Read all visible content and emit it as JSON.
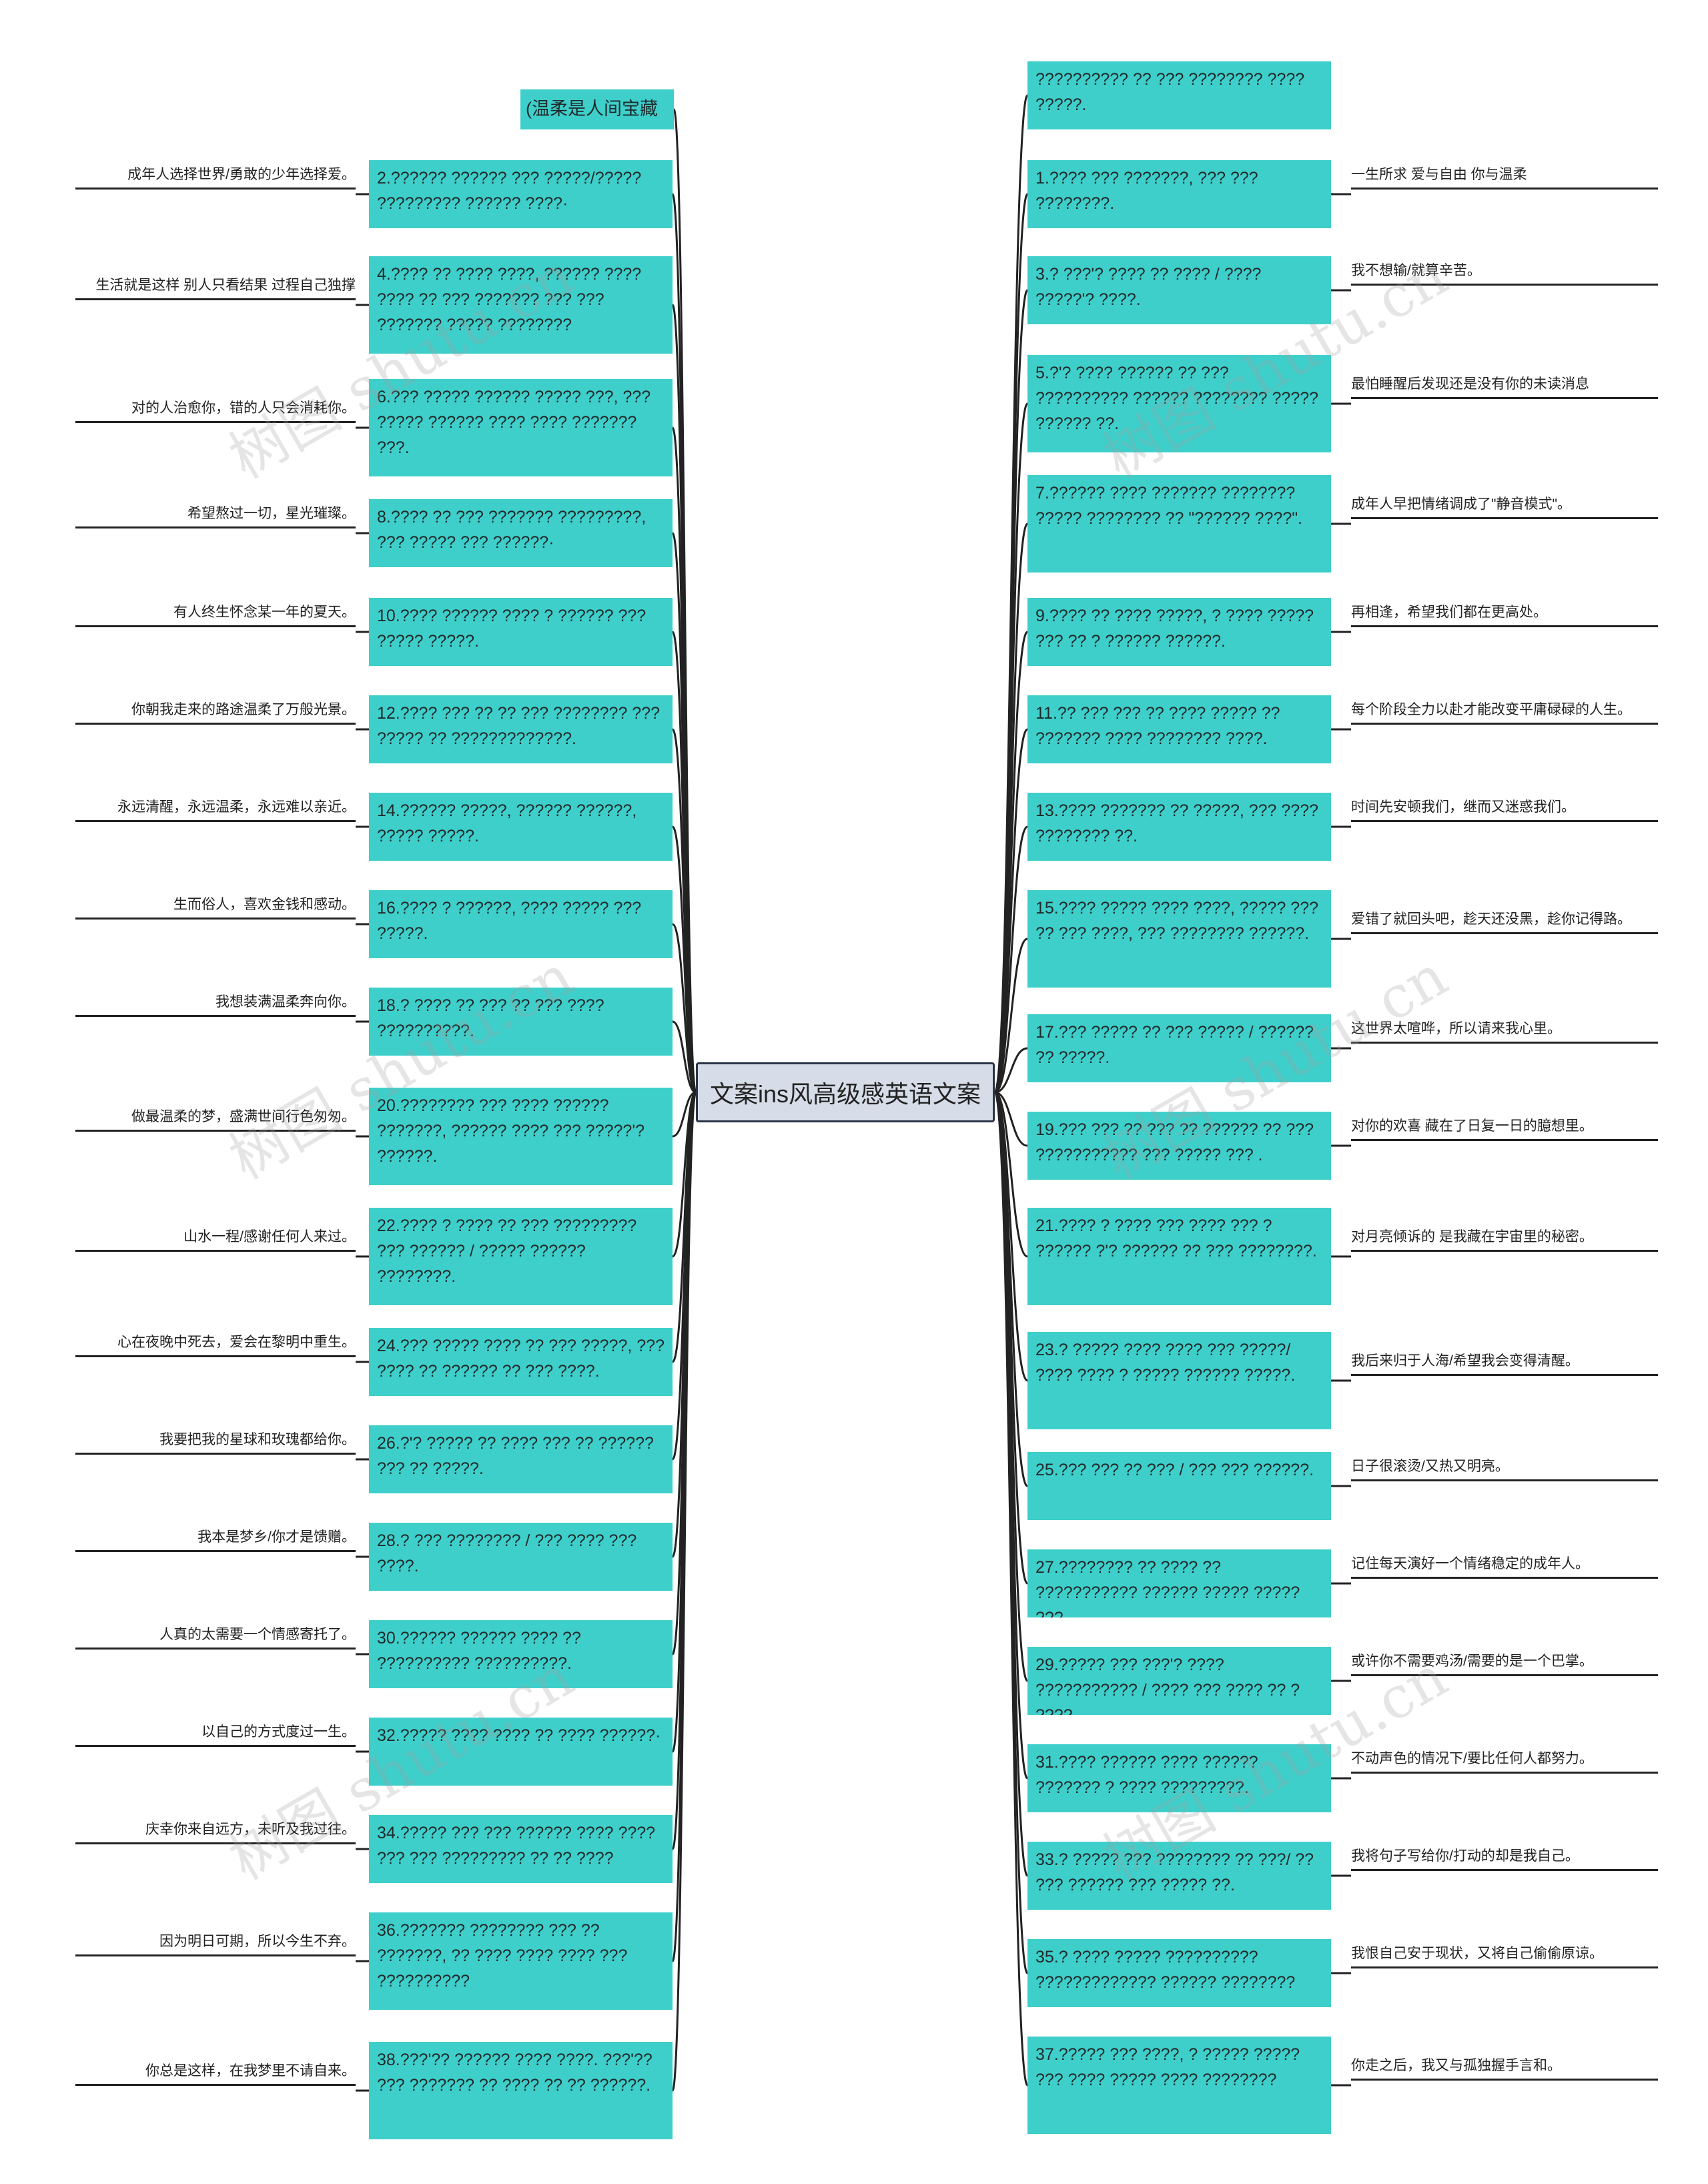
{
  "root": "文案ins风高级感英语文案",
  "left_top_label": "(温柔是人间宝藏",
  "left": [
    {
      "en": "2.?????? ?????? ??? ?????/????? ????????? ?????? ????·",
      "zh": "成年人选择世界/勇敢的少年选择爱。"
    },
    {
      "en": "4.???? ?? ???? ????, ?????? ???? ???? ?? ??? ??????? ??? ??? ??????? ?????   ????????",
      "zh": "生活就是这样 别人只看结果 过程自己独撑"
    },
    {
      "en": "6.??? ????? ?????? ????? ???, ??? ????? ?????? ???? ???? ??????? ???.",
      "zh": "对的人治愈你，错的人只会消耗你。"
    },
    {
      "en": "8.???? ?? ??? ??????? ?????????, ??? ????? ??? ??????·",
      "zh": "希望熬过一切，星光璀璨。"
    },
    {
      "en": "10.???? ?????? ???? ? ?????? ??? ????? ?????.",
      "zh": "有人终生怀念某一年的夏天。"
    },
    {
      "en": "12.???? ??? ?? ?? ??? ???????? ??? ????? ?? ?????????????.",
      "zh": "你朝我走来的路途温柔了万般光景。"
    },
    {
      "en": "14.?????? ?????, ?????? ??????, ????? ?????.",
      "zh": "永远清醒，永远温柔，永远难以亲近。"
    },
    {
      "en": "16.???? ? ??????, ???? ????? ??? ?????.",
      "zh": "生而俗人，喜欢金钱和感动。"
    },
    {
      "en": "18.? ???? ?? ??? ?? ??? ???? ??????????.",
      "zh": "我想装满温柔奔向你。"
    },
    {
      "en": "20.???????? ??? ???? ?????? ???????, ?????? ???? ??? ?????'? ??????.",
      "zh": "做最温柔的梦，盛满世间行色匆匆。"
    },
    {
      "en": "22.???? ? ???? ?? ??? ????????? ??? ?????? / ????? ?????? ????????.",
      "zh": "山水一程/感谢任何人来过。"
    },
    {
      "en": "24.??? ????? ???? ?? ??? ?????, ??? ???? ?? ?????? ?? ??? ????.",
      "zh": "心在夜晚中死去，爱会在黎明中重生。"
    },
    {
      "en": "26.?'? ????? ?? ???? ??? ?? ?????? ??? ?? ?????.",
      "zh": "我要把我的星球和玫瑰都给你。"
    },
    {
      "en": "28.? ??? ???????? / ??? ???? ??? ????.",
      "zh": "我本是梦乡/你才是馈赠。"
    },
    {
      "en": "30.?????? ?????? ???? ?? ?????????? ??????????.",
      "zh": "人真的太需要一个情感寄托了。"
    },
    {
      "en": "32.????? ???? ???? ?? ???? ??????·",
      "zh": "以自己的方式度过一生。"
    },
    {
      "en": "34.????? ??? ??? ?????? ???? ???? ??? ??? ????????? ?? ?? ????",
      "zh": "庆幸你来自远方，未听及我过往。"
    },
    {
      "en": "36.??????? ???????? ??? ?? ???????, ?? ???? ???? ???? ??? ??????????",
      "zh": "因为明日可期，所以今生不弃。"
    },
    {
      "en": "38.???'?? ?????? ???? ????. ???'?? ??? ??????? ?? ???? ?? ?? ??????.",
      "zh": "你总是这样，在我梦里不请自来。"
    }
  ],
  "right_top_label": "?????????? ?? ??? ???????? ???? ?????.",
  "right": [
    {
      "en": "1.???? ??? ???????, ??? ??? ????????.",
      "zh": "一生所求 爱与自由 你与温柔"
    },
    {
      "en": "3.? ???'? ???? ?? ???? / ???? ?????'? ????.",
      "zh": "我不想输/就算辛苦。"
    },
    {
      "en": "5.?'? ???? ?????? ?? ??? ?????????? ?????? ???????? ????? ?????? ??.",
      "zh": "最怕睡醒后发现还是没有你的未读消息"
    },
    {
      "en": "7.?????? ???? ??????? ???????? ????? ???????? ?? \"?????? ????\".",
      "zh": "成年人早把情绪调成了\"静音模式\"。"
    },
    {
      "en": "9.???? ?? ???? ?????, ? ???? ????? ??? ?? ? ?????? ??????.",
      "zh": "再相逢，希望我们都在更高处。"
    },
    {
      "en": "11.?? ??? ??? ?? ???? ????? ?? ??????? ???? ???????? ????.",
      "zh": "每个阶段全力以赴才能改变平庸碌碌的人生。"
    },
    {
      "en": "13.???? ??????? ?? ?????, ??? ???? ???????? ??.",
      "zh": "时间先安顿我们，继而又迷惑我们。"
    },
    {
      "en": "15.???? ????? ???? ????, ????? ??? ?? ??? ????, ??? ???????? ??????.",
      "zh": "爱错了就回头吧，趁天还没黑，趁你记得路。"
    },
    {
      "en": "17.??? ????? ?? ??? ????? / ?????? ?? ?????.",
      "zh": "这世界太喧哗，所以请来我心里。"
    },
    {
      "en": "19.??? ??? ?? ??? ?? ?????? ?? ??? ??????????? ??? ????? ??? .",
      "zh": "对你的欢喜 藏在了日复一日的臆想里。"
    },
    {
      "en": "21.???? ? ???? ??? ???? ??? ? ?????? ?'? ?????? ?? ??? ????????.",
      "zh": "对月亮倾诉的 是我藏在宇宙里的秘密。"
    },
    {
      "en": "23.? ????? ???? ???? ??? ?????/ ???? ???? ? ????? ?????? ?????.",
      "zh": "我后来归于人海/希望我会变得清醒。"
    },
    {
      "en": "25.??? ??? ?? ??? / ??? ??? ??????.",
      "zh": "日子很滚烫/又热又明亮。"
    },
    {
      "en": "27.???????? ?? ???? ?? ??????????? ?????? ????? ????? ???.",
      "zh": "记住每天演好一个情绪稳定的成年人。"
    },
    {
      "en": "29.????? ??? ???'? ???? ??????????? / ???? ??? ???? ?? ? ????.",
      "zh": "或许你不需要鸡汤/需要的是一个巴掌。"
    },
    {
      "en": "31.???? ?????? ???? ?????? ??????? ? ???? ?????????.",
      "zh": "不动声色的情况下/要比任何人都努力。"
    },
    {
      "en": "33.? ????? ??? ???????? ?? ???/ ?? ??? ?????? ??? ????? ??.",
      "zh": "我将句子写给你/打动的却是我自己。"
    },
    {
      "en": "35.? ???? ????? ?????????? ????????????? ?????? ????????",
      "zh": "我恨自己安于现状，又将自己偷偷原谅。"
    },
    {
      "en": "37.????? ??? ????, ? ????? ????? ??? ???? ????? ???? ????????",
      "zh": "你走之后，我又与孤独握手言和。"
    }
  ],
  "watermark": "树图 shutu.cn"
}
